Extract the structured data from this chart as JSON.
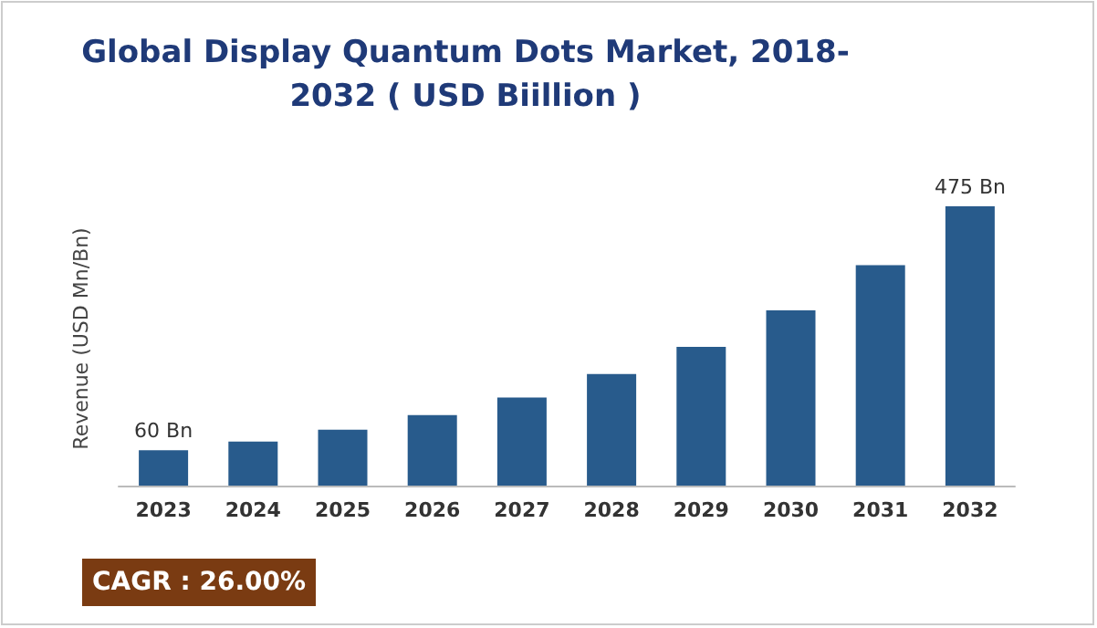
{
  "chart_data": {
    "type": "bar",
    "title": "Global Display Quantum Dots Market, 2018-\n2032 ( USD Biillion )",
    "ylabel": "Revenue (USD Mn/Bn)",
    "tick_labels": "x",
    "categories": [
      "2023",
      "2024",
      "2025",
      "2026",
      "2027",
      "2028",
      "2029",
      "2030",
      "2031",
      "2032"
    ],
    "values": [
      60,
      75,
      95,
      120,
      150,
      190,
      236,
      298,
      375,
      475
    ],
    "value_labels": [
      "60 Bn",
      null,
      null,
      null,
      null,
      null,
      null,
      null,
      null,
      "475 Bn"
    ],
    "color": "#285b8c",
    "annotations": [
      "CAGR : 26.00%"
    ],
    "grid": false
  }
}
